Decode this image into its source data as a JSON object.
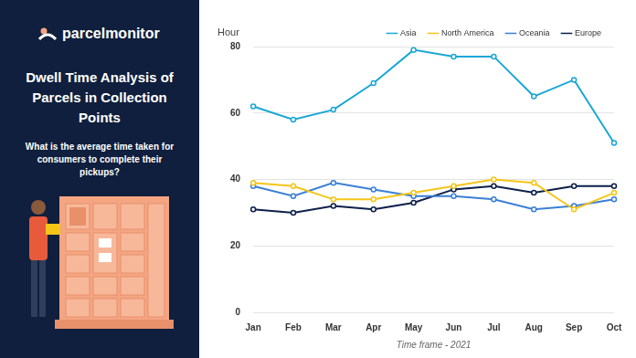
{
  "chart_data": {
    "type": "line",
    "title": "Dwell Time Analysis of Parcels in Collection Points",
    "subtitle": "What is the average time taken for consumers to complete their pickups?",
    "annotations": [
      "parcelmonitor"
    ],
    "x_label": "Time frame - 2021",
    "y_label": "Hour",
    "categories": [
      "Jan",
      "Feb",
      "Mar",
      "Apr",
      "May",
      "Jun",
      "Jul",
      "Aug",
      "Sep",
      "Oct"
    ],
    "series": [
      {
        "name": "Asia",
        "color": "#1aa7d6",
        "values": [
          62,
          58,
          61,
          69,
          79,
          77,
          77,
          65,
          70,
          51
        ]
      },
      {
        "name": "North America",
        "color": "#f5c518",
        "values": [
          39,
          38,
          34,
          34,
          36,
          38,
          40,
          39,
          31,
          36
        ]
      },
      {
        "name": "Oceania",
        "color": "#3b7fd6",
        "values": [
          38,
          35,
          39,
          37,
          35,
          35,
          34,
          31,
          32,
          34
        ]
      },
      {
        "name": "Europe",
        "color": "#0d1f4a",
        "values": [
          31,
          30,
          32,
          31,
          33,
          37,
          38,
          36,
          38,
          38
        ]
      }
    ],
    "ylim": [
      0,
      80
    ],
    "yticks": [
      0,
      20,
      40,
      60,
      80
    ],
    "grid": true,
    "legend": "top",
    "marker": "circle"
  }
}
